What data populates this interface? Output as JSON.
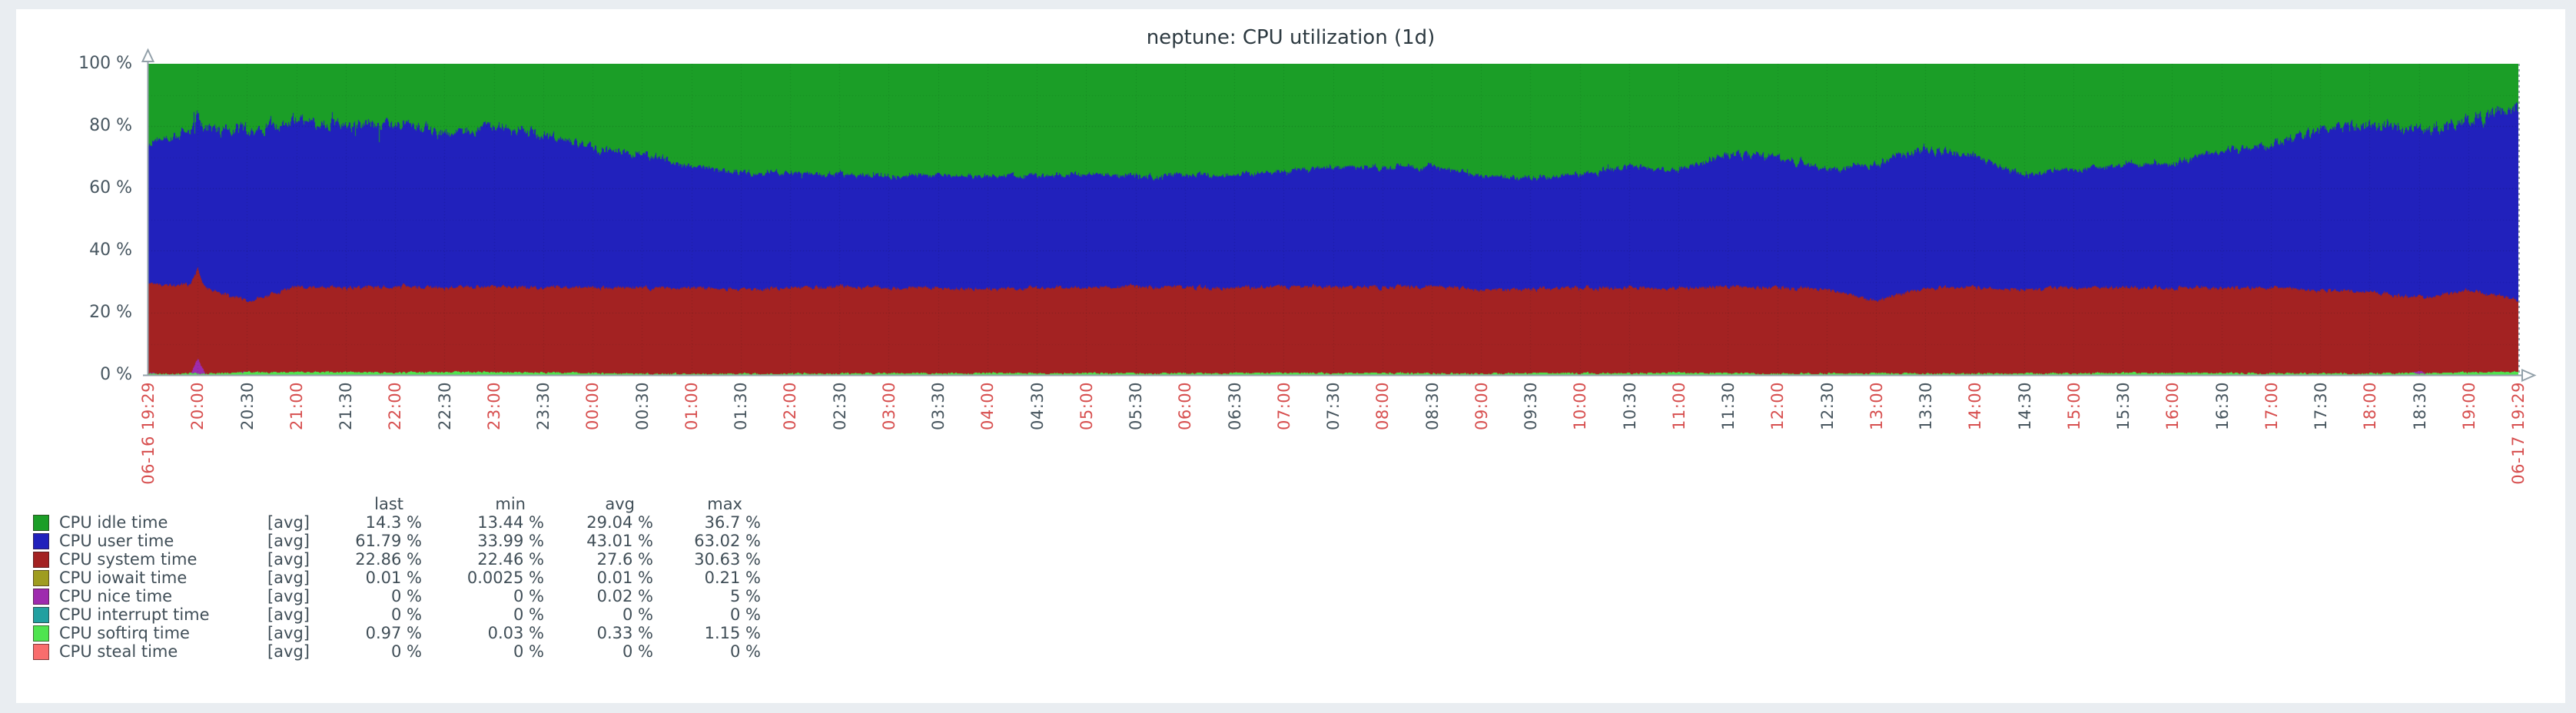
{
  "page": {
    "background": "#e9edf1",
    "card_background": "#ffffff"
  },
  "header": {
    "title": "neptune: CPU utilization (1d)"
  },
  "colors": {
    "axis": "#93a1aa",
    "tick_red": "#d74f4f",
    "tick_gray": "#47555e",
    "title_text": "#2c3940",
    "legend_text": "#404e57",
    "grid": "rgba(20,20,20,0.2)"
  },
  "chart_data": {
    "type": "area",
    "stacked": true,
    "title": "neptune: CPU utilization (1d)",
    "xlabel": "",
    "ylabel": "",
    "yunit": "%",
    "ylim": [
      0,
      100
    ],
    "grid": "dotted",
    "legend_position": "bottom-left",
    "legend_columns": [
      "last",
      "min",
      "avg",
      "max"
    ],
    "y_ticks": [
      {
        "label": "100 %",
        "value": 100
      },
      {
        "label": "80 %",
        "value": 80
      },
      {
        "label": "60 %",
        "value": 60
      },
      {
        "label": "40 %",
        "value": 40
      },
      {
        "label": "20 %",
        "value": 20
      },
      {
        "label": "0 %",
        "value": 0
      }
    ],
    "x_ticks": [
      {
        "label": "06-16 19:29",
        "red": true
      },
      {
        "label": "20:00",
        "red": true
      },
      {
        "label": "20:30",
        "red": false
      },
      {
        "label": "21:00",
        "red": true
      },
      {
        "label": "21:30",
        "red": false
      },
      {
        "label": "22:00",
        "red": true
      },
      {
        "label": "22:30",
        "red": false
      },
      {
        "label": "23:00",
        "red": true
      },
      {
        "label": "23:30",
        "red": false
      },
      {
        "label": "00:00",
        "red": true
      },
      {
        "label": "00:30",
        "red": false
      },
      {
        "label": "01:00",
        "red": true
      },
      {
        "label": "01:30",
        "red": false
      },
      {
        "label": "02:00",
        "red": true
      },
      {
        "label": "02:30",
        "red": false
      },
      {
        "label": "03:00",
        "red": true
      },
      {
        "label": "03:30",
        "red": false
      },
      {
        "label": "04:00",
        "red": true
      },
      {
        "label": "04:30",
        "red": false
      },
      {
        "label": "05:00",
        "red": true
      },
      {
        "label": "05:30",
        "red": false
      },
      {
        "label": "06:00",
        "red": true
      },
      {
        "label": "06:30",
        "red": false
      },
      {
        "label": "07:00",
        "red": true
      },
      {
        "label": "07:30",
        "red": false
      },
      {
        "label": "08:00",
        "red": true
      },
      {
        "label": "08:30",
        "red": false
      },
      {
        "label": "09:00",
        "red": true
      },
      {
        "label": "09:30",
        "red": false
      },
      {
        "label": "10:00",
        "red": true
      },
      {
        "label": "10:30",
        "red": false
      },
      {
        "label": "11:00",
        "red": true
      },
      {
        "label": "11:30",
        "red": false
      },
      {
        "label": "12:00",
        "red": true
      },
      {
        "label": "12:30",
        "red": false
      },
      {
        "label": "13:00",
        "red": true
      },
      {
        "label": "13:30",
        "red": false
      },
      {
        "label": "14:00",
        "red": true
      },
      {
        "label": "14:30",
        "red": false
      },
      {
        "label": "15:00",
        "red": true
      },
      {
        "label": "15:30",
        "red": false
      },
      {
        "label": "16:00",
        "red": true
      },
      {
        "label": "16:30",
        "red": false
      },
      {
        "label": "17:00",
        "red": true
      },
      {
        "label": "17:30",
        "red": false
      },
      {
        "label": "18:00",
        "red": true
      },
      {
        "label": "18:30",
        "red": false
      },
      {
        "label": "19:00",
        "red": true
      },
      {
        "label": "06-17 19:29",
        "red": true
      }
    ],
    "stack_order_bottom_to_top": [
      "steal",
      "softirq",
      "interrupt",
      "nice",
      "iowait",
      "system",
      "user",
      "idle"
    ],
    "series": [
      {
        "key": "idle",
        "name": "CPU idle time",
        "func": "[avg]",
        "color": "#1b9e27",
        "legend": {
          "last": "14.3 %",
          "min": "13.44 %",
          "avg": "29.04 %",
          "max": "36.7 %"
        },
        "values": [
          26,
          21,
          17,
          18,
          20,
          19,
          22,
          20,
          23,
          27,
          29,
          33,
          35,
          35,
          35.5,
          36,
          35.5,
          36,
          36,
          35.5,
          36,
          36,
          35.5,
          35,
          33,
          33.5,
          33,
          36,
          37,
          35.5,
          33,
          34,
          29,
          30,
          34,
          32,
          27,
          30,
          35.5,
          34,
          32.5,
          32,
          28,
          26,
          22,
          19,
          21,
          18,
          14.3
        ]
      },
      {
        "key": "user",
        "name": "CPU user time",
        "func": "[avg]",
        "color": "#2121bc",
        "legend": {
          "last": "61.79 %",
          "min": "33.99 %",
          "avg": "43.01 %",
          "max": "63.02 %"
        },
        "values": [
          45,
          50,
          54.5,
          53.5,
          52,
          52.5,
          50,
          51.5,
          49,
          45,
          43,
          39,
          37.5,
          37,
          36,
          36,
          36.5,
          36.5,
          36,
          36.5,
          35.5,
          36,
          36.5,
          37,
          38.5,
          38.5,
          38.5,
          36.5,
          35.5,
          36.5,
          39,
          38,
          42.5,
          42,
          38.5,
          44,
          45,
          42,
          37,
          38,
          39.5,
          40,
          44,
          46,
          51,
          54,
          53.5,
          54.5,
          61.79
        ]
      },
      {
        "key": "system",
        "name": "CPU system time",
        "func": "[avg]",
        "color": "#a32222",
        "legend": {
          "last": "22.86 %",
          "min": "22.46 %",
          "avg": "27.6 %",
          "max": "30.63 %"
        },
        "values": [
          28.7,
          28.5,
          22.7,
          27.5,
          27.1,
          27.7,
          27.1,
          27.5,
          27.2,
          27.5,
          27.6,
          27.7,
          27.2,
          27.6,
          28,
          27.4,
          27.5,
          26.9,
          27.5,
          27.4,
          28,
          27.5,
          27.4,
          27.4,
          28,
          27.4,
          28,
          27.1,
          27,
          27.4,
          27.5,
          27.3,
          27.9,
          27.6,
          27,
          23.4,
          27.5,
          27.6,
          27,
          27.5,
          27.4,
          27.3,
          27.4,
          27.5,
          26.6,
          26.5,
          23.9,
          26.7,
          22.86
        ]
      },
      {
        "key": "iowait",
        "name": "CPU iowait time",
        "func": "[avg]",
        "color": "#9f9c20",
        "legend": {
          "last": "0.01 %",
          "min": "0.0025 %",
          "avg": "0.01 %",
          "max": "0.21 %"
        },
        "values": [
          0.01,
          0.01,
          0.01,
          0.01,
          0.01,
          0.01,
          0.01,
          0.01,
          0.01,
          0.01,
          0.01,
          0.01,
          0.01,
          0.01,
          0.01,
          0.01,
          0.01,
          0.01,
          0.01,
          0.01,
          0.01,
          0.01,
          0.01,
          0.01,
          0.01,
          0.01,
          0.01,
          0.01,
          0.01,
          0.01,
          0.01,
          0.01,
          0.01,
          0.01,
          0.01,
          0.01,
          0.01,
          0.01,
          0.01,
          0.01,
          0.01,
          0.01,
          0.01,
          0.01,
          0.01,
          0.01,
          0.01,
          0.01,
          0.01
        ]
      },
      {
        "key": "nice",
        "name": "CPU nice time",
        "func": "[avg]",
        "color": "#9e2bae",
        "legend": {
          "last": "0 %",
          "min": "0 %",
          "avg": "0.02 %",
          "max": "5 %"
        },
        "values": [
          0,
          5,
          0,
          0,
          0,
          0,
          0,
          0,
          0,
          0,
          0,
          0,
          0,
          0,
          0,
          0,
          0,
          0,
          0,
          0,
          0,
          0,
          0,
          0,
          0,
          0,
          0,
          0,
          0,
          0,
          0,
          0,
          0,
          0,
          0,
          0,
          0,
          0,
          0,
          0,
          0,
          0,
          0,
          0,
          0,
          0,
          1,
          0,
          0
        ]
      },
      {
        "key": "interrupt",
        "name": "CPU interrupt time",
        "func": "[avg]",
        "color": "#22a0a0",
        "legend": {
          "last": "0 %",
          "min": "0 %",
          "avg": "0 %",
          "max": "0 %"
        },
        "values": [
          0,
          0,
          0,
          0,
          0,
          0,
          0,
          0,
          0,
          0,
          0,
          0,
          0,
          0,
          0,
          0,
          0,
          0,
          0,
          0,
          0,
          0,
          0,
          0,
          0,
          0,
          0,
          0,
          0,
          0,
          0,
          0,
          0,
          0,
          0,
          0,
          0,
          0,
          0,
          0,
          0,
          0,
          0,
          0,
          0,
          0,
          0,
          0,
          0
        ]
      },
      {
        "key": "softirq",
        "name": "CPU softirq time",
        "func": "[avg]",
        "color": "#4fe44f",
        "legend": {
          "last": "0.97 %",
          "min": "0.03 %",
          "avg": "0.33 %",
          "max": "1.15 %"
        },
        "values": [
          0.3,
          0.5,
          0.8,
          1,
          0.9,
          0.8,
          0.9,
          1,
          0.8,
          0.5,
          0.4,
          0.3,
          0.3,
          0.4,
          0.5,
          0.6,
          0.5,
          0.6,
          0.5,
          0.6,
          0.5,
          0.5,
          0.6,
          0.6,
          0.5,
          0.6,
          0.5,
          0.4,
          0.5,
          0.6,
          0.5,
          0.7,
          0.6,
          0.4,
          0.5,
          0.6,
          0.5,
          0.4,
          0.5,
          0.5,
          0.6,
          0.7,
          0.6,
          0.5,
          0.4,
          0.5,
          0.6,
          0.8,
          0.97
        ]
      },
      {
        "key": "steal",
        "name": "CPU steal time",
        "func": "[avg]",
        "color": "#f96d6d",
        "legend": {
          "last": "0 %",
          "min": "0 %",
          "avg": "0 %",
          "max": "0 %"
        },
        "values": [
          0,
          0,
          0,
          0,
          0,
          0,
          0,
          0,
          0,
          0,
          0,
          0,
          0,
          0,
          0,
          0,
          0,
          0,
          0,
          0,
          0,
          0,
          0,
          0,
          0,
          0,
          0,
          0,
          0,
          0,
          0,
          0,
          0,
          0,
          0,
          0,
          0,
          0,
          0,
          0,
          0,
          0,
          0,
          0,
          0,
          0,
          0,
          0,
          0
        ]
      }
    ]
  }
}
